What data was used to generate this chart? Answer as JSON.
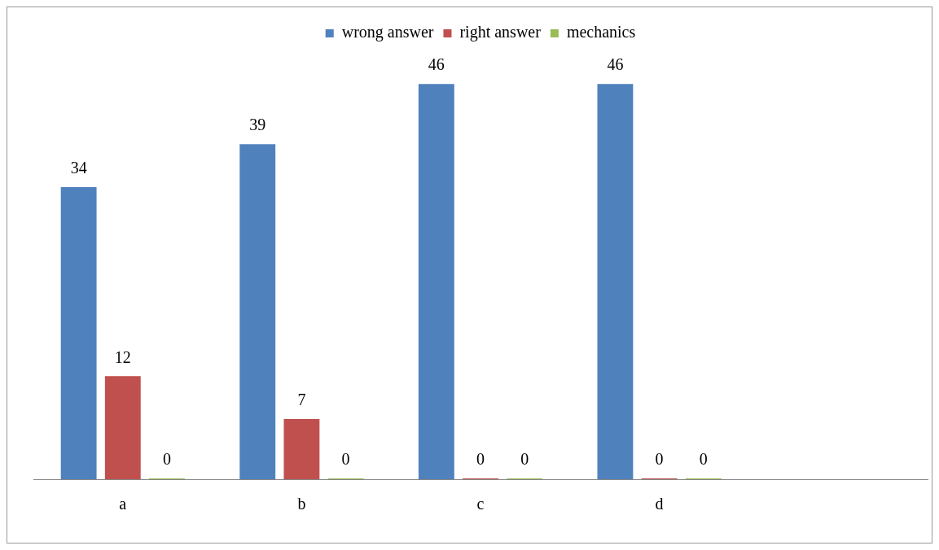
{
  "chart_data": {
    "type": "bar",
    "categories": [
      "a",
      "b",
      "c",
      "d",
      null
    ],
    "series": [
      {
        "name": "wrong answer",
        "color": "#4f81bd",
        "values": [
          34,
          39,
          46,
          46,
          null
        ]
      },
      {
        "name": "right answer",
        "color": "#c0504d",
        "values": [
          12,
          7,
          0,
          0,
          null
        ]
      },
      {
        "name": "mechanics",
        "color": "#9bbb59",
        "values": [
          0,
          0,
          0,
          0,
          null
        ]
      }
    ],
    "data_labels": true,
    "legend": "top",
    "grid": false,
    "tick_labels": "x"
  }
}
